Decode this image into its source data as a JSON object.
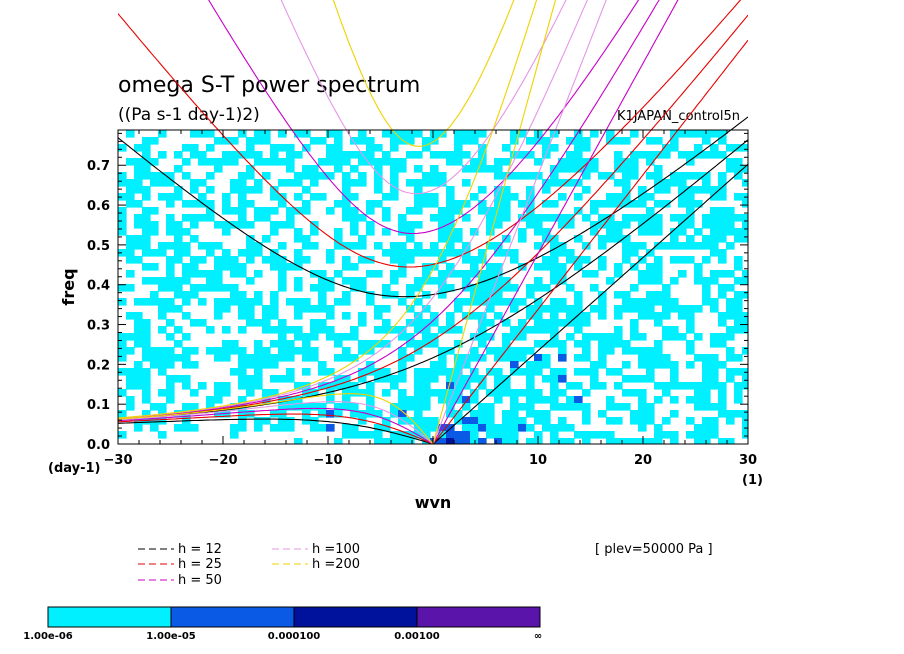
{
  "chart_data": {
    "type": "heatmap",
    "title": "omega S-T power spectrum",
    "subtitle": "((Pa s-1 day-1)2)",
    "run_label": "K1JAPAN_control5n",
    "xlabel": "wvn",
    "ylabel": "freq",
    "x_unit": "(1)",
    "y_unit": "(day-1)",
    "xlim": [
      -30,
      30
    ],
    "ylim": [
      0,
      0.8
    ],
    "x_ticks": [
      -30,
      -20,
      -10,
      0,
      10,
      20,
      30
    ],
    "y_ticks": [
      0.0,
      0.1,
      0.2,
      0.3,
      0.4,
      0.5,
      0.6,
      0.7
    ],
    "x_tick_labels": [
      "−30",
      "−20",
      "−10",
      "0",
      "10",
      "20",
      "30"
    ],
    "y_tick_labels": [
      "0.0",
      "0.1",
      "0.2",
      "0.3",
      "0.4",
      "0.5",
      "0.6",
      "0.7"
    ],
    "plev_note": "[ plev=50000 Pa ]",
    "shading_levels": [
      {
        "label": "1.00e-06",
        "color": "#00f0ff"
      },
      {
        "label": "1.00e-05",
        "color": "#0a5ae6"
      },
      {
        "label": "0.000100",
        "color": "#00129c"
      },
      {
        "label": "0.00100",
        "color": "#5a14aa"
      }
    ],
    "shading_end_label": "∞",
    "dispersion_curves": [
      {
        "name": "h = 12",
        "color": "#000000",
        "equivalent_depth": 12
      },
      {
        "name": "h = 25",
        "color": "#e60000",
        "equivalent_depth": 25
      },
      {
        "name": "h = 50",
        "color": "#c800c8",
        "equivalent_depth": 50
      },
      {
        "name": "h =100",
        "color": "#e696e6",
        "equivalent_depth": 100
      },
      {
        "name": "h =200",
        "color": "#f0d200",
        "equivalent_depth": 200
      }
    ]
  }
}
